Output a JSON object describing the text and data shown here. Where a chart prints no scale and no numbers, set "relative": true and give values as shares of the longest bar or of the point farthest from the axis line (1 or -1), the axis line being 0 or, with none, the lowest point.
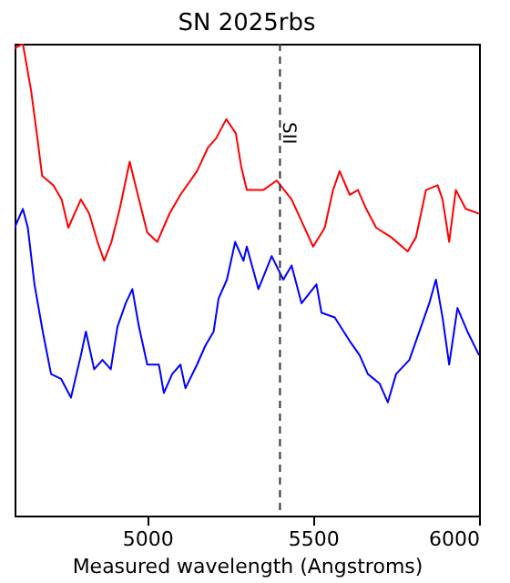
{
  "chart_data": {
    "type": "line",
    "title": "SN 2025rbs",
    "xlabel": "Measured wavelength (Angstroms)",
    "relative": true,
    "grid": false,
    "line_style": "solid",
    "xlim": [
      4600,
      6000
    ],
    "xticks": [
      5000,
      5500,
      6000
    ],
    "ref_lines": [
      {
        "axis": "x",
        "value": 5400,
        "label": "SII",
        "line_style": "dashed",
        "color": "#333333"
      }
    ],
    "series": [
      {
        "color": "#ff0000",
        "x": [
          4600,
          4625,
          4650,
          4667,
          4683,
          4717,
          4742,
          4762,
          4800,
          4825,
          4850,
          4870,
          4892,
          4917,
          4947,
          4975,
          5000,
          5030,
          5067,
          5100,
          5150,
          5183,
          5208,
          5238,
          5267,
          5283,
          5300,
          5350,
          5390,
          5435,
          5500,
          5535,
          5560,
          5580,
          5610,
          5635,
          5660,
          5690,
          5735,
          5785,
          5810,
          5840,
          5875,
          5890,
          5910,
          5930,
          5960,
          6000
        ],
        "values": [
          0.99,
          1.0,
          0.9,
          0.81,
          0.72,
          0.7,
          0.67,
          0.61,
          0.67,
          0.64,
          0.58,
          0.54,
          0.58,
          0.65,
          0.75,
          0.67,
          0.6,
          0.58,
          0.64,
          0.68,
          0.73,
          0.78,
          0.8,
          0.84,
          0.81,
          0.74,
          0.69,
          0.69,
          0.71,
          0.67,
          0.57,
          0.61,
          0.69,
          0.73,
          0.68,
          0.69,
          0.65,
          0.61,
          0.59,
          0.56,
          0.59,
          0.69,
          0.7,
          0.67,
          0.58,
          0.69,
          0.65,
          0.64
        ]
      },
      {
        "color": "#0000ff",
        "x": [
          4600,
          4625,
          4640,
          4660,
          4685,
          4710,
          4740,
          4770,
          4800,
          4815,
          4840,
          4865,
          4890,
          4910,
          4935,
          4955,
          4975,
          5000,
          5035,
          5050,
          5075,
          5100,
          5115,
          5150,
          5175,
          5200,
          5215,
          5240,
          5265,
          5290,
          5300,
          5335,
          5375,
          5410,
          5435,
          5465,
          5510,
          5525,
          5565,
          5610,
          5640,
          5665,
          5700,
          5725,
          5750,
          5790,
          5825,
          5850,
          5870,
          5890,
          5910,
          5935,
          5965,
          6000
        ],
        "values": [
          0.61,
          0.65,
          0.61,
          0.49,
          0.39,
          0.3,
          0.29,
          0.25,
          0.34,
          0.39,
          0.31,
          0.33,
          0.31,
          0.4,
          0.45,
          0.48,
          0.4,
          0.32,
          0.32,
          0.26,
          0.3,
          0.32,
          0.27,
          0.32,
          0.36,
          0.39,
          0.46,
          0.5,
          0.58,
          0.54,
          0.57,
          0.48,
          0.55,
          0.5,
          0.53,
          0.45,
          0.49,
          0.43,
          0.42,
          0.37,
          0.34,
          0.3,
          0.28,
          0.24,
          0.3,
          0.33,
          0.4,
          0.45,
          0.5,
          0.42,
          0.32,
          0.44,
          0.39,
          0.34
        ]
      }
    ]
  }
}
